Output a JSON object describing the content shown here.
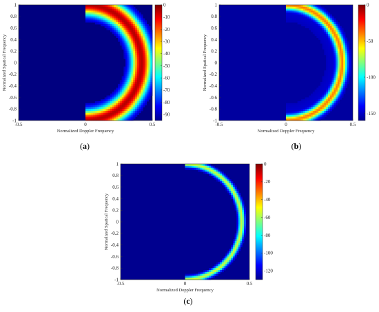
{
  "chart_data": [
    {
      "type": "heatmap",
      "panel_label": "a",
      "xlabel": "Normalized Doppler Frequency",
      "ylabel": "Normalized Spatical Frequency",
      "xlim": [
        -0.5,
        0.5
      ],
      "ylim": [
        -1,
        1
      ],
      "x_ticks": [
        "-0.5",
        "0",
        "0.5"
      ],
      "y_ticks": [
        "1",
        "0.8",
        "0.6",
        "0.4",
        "0.2",
        "0",
        "-0.2",
        "-0.4",
        "-0.6",
        "-0.8",
        "-1"
      ],
      "colorbar": {
        "min": -95,
        "max": 0,
        "ticks": [
          "0",
          "-10",
          "-20",
          "-30",
          "-40",
          "-50",
          "-60",
          "-70",
          "-80",
          "-90"
        ]
      },
      "ridge": {
        "shape": "semicircle",
        "max_doppler": 0.42,
        "spread": 0.06,
        "background_level": -95,
        "peak_level": -5
      }
    },
    {
      "type": "heatmap",
      "panel_label": "b",
      "xlabel": "Normalized Doppler Frequency",
      "ylabel": "Normalized Spatical Frequency",
      "xlim": [
        -0.5,
        0.5
      ],
      "ylim": [
        -1,
        1
      ],
      "x_ticks": [
        "-0.5",
        "0",
        "0.5"
      ],
      "y_ticks": [
        "1",
        "0.8",
        "0.6",
        "0.4",
        "0.2",
        "0",
        "-0.2",
        "-0.4",
        "-0.6",
        "-0.8",
        "-1"
      ],
      "colorbar": {
        "min": -160,
        "max": 0,
        "ticks": [
          "0",
          "-50",
          "-100",
          "-150"
        ]
      },
      "ridge": {
        "shape": "semicircle",
        "max_doppler": 0.42,
        "spread": 0.03,
        "background_level": -155,
        "peak_level": -40
      }
    },
    {
      "type": "heatmap",
      "panel_label": "c",
      "xlabel": "Normalized Doppler Frequency",
      "ylabel": "Normalized Spatical Frequency",
      "xlim": [
        -0.5,
        0.5
      ],
      "ylim": [
        -1,
        1
      ],
      "x_ticks": [
        "-0.5",
        "0",
        "0.5"
      ],
      "y_ticks": [
        "1",
        "0.8",
        "0.6",
        "0.4",
        "0.2",
        "0",
        "-0.2",
        "-0.4",
        "-0.6",
        "-0.8",
        "-1"
      ],
      "colorbar": {
        "min": -130,
        "max": 0,
        "ticks": [
          "0",
          "-20",
          "-40",
          "-60",
          "-80",
          "-100",
          "-120"
        ]
      },
      "ridge": {
        "shape": "semicircle",
        "max_doppler": 0.44,
        "spread": 0.018,
        "background_level": -128,
        "peak_level": -55
      }
    }
  ]
}
